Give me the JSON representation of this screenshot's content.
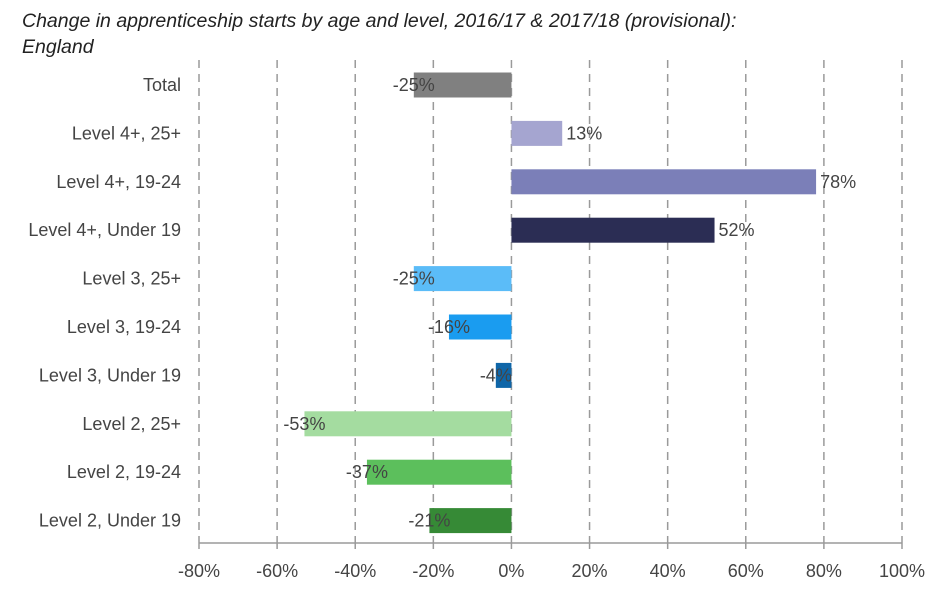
{
  "chart_data": {
    "type": "bar",
    "orientation": "horizontal",
    "title_lines": [
      "Change in apprenticeship starts by age and level, 2016/17 & 2017/18 (provisional):",
      "England"
    ],
    "categories": [
      "Total",
      "Level 4+, 25+",
      "Level 4+, 19-24",
      "Level 4+, Under 19",
      "Level 3, 25+",
      "Level 3, 19-24",
      "Level 3, Under 19",
      "Level 2, 25+",
      "Level 2, 19-24",
      "Level 2, Under 19"
    ],
    "values": [
      -25,
      13,
      78,
      52,
      -25,
      -16,
      -4,
      -53,
      -37,
      -21
    ],
    "value_labels": [
      "-25%",
      "13%",
      "78%",
      "52%",
      "-25%",
      "-16%",
      "-4%",
      "-53%",
      "-37%",
      "-21%"
    ],
    "colors": [
      "#808080",
      "#a5a5d0",
      "#7b7fb8",
      "#2b2d54",
      "#5bbcf8",
      "#1a9cf0",
      "#0f66a8",
      "#a4dca0",
      "#5cbf5c",
      "#368a36"
    ],
    "xlim": [
      -80,
      100
    ],
    "xticks": [
      -80,
      -60,
      -40,
      -20,
      0,
      20,
      40,
      60,
      80,
      100
    ],
    "xtick_labels": [
      "-80%",
      "-60%",
      "-40%",
      "-20%",
      "0%",
      "20%",
      "40%",
      "60%",
      "80%",
      "100%"
    ],
    "xlabel": "",
    "ylabel": "",
    "grid": "vertical-dashed",
    "legend": "none"
  }
}
